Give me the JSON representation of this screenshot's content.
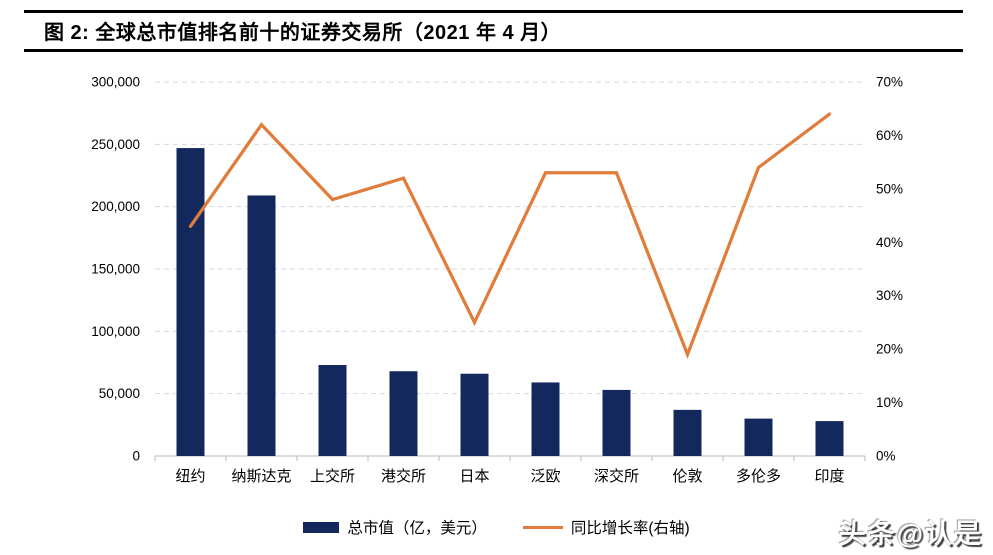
{
  "title": "图 2:  全球总市值排名前十的证券交易所（2021 年 4 月）",
  "watermark": "头条@认是",
  "legend": {
    "bar_label": "总市值（亿，美元）",
    "line_label": "同比增长率(右轴)"
  },
  "colors": {
    "bar": "#13295e",
    "line": "#e17d3c",
    "grid": "#d9d9d9",
    "axis": "#c6c6c6",
    "text": "#000000"
  },
  "chart_data": {
    "type": "bar",
    "subtype": "combo-bar-line-dual-axis",
    "title": "",
    "categories": [
      "纽约",
      "纳斯达克",
      "上交所",
      "港交所",
      "日本",
      "泛欧",
      "深交所",
      "伦敦",
      "多伦多",
      "印度"
    ],
    "series": [
      {
        "name": "总市值（亿，美元）",
        "type": "bar",
        "axis": "left",
        "color": "#13295e",
        "values": [
          247000,
          209000,
          73000,
          68000,
          66000,
          59000,
          53000,
          37000,
          30000,
          28000
        ]
      },
      {
        "name": "同比增长率(右轴)",
        "type": "line",
        "axis": "right",
        "color": "#e17d3c",
        "values": [
          43,
          62,
          48,
          52,
          25,
          53,
          53,
          19,
          54,
          64
        ]
      }
    ],
    "left_axis": {
      "min": 0,
      "max": 300000,
      "step": 50000,
      "tick_labels": [
        "0",
        "50,000",
        "100,000",
        "150,000",
        "200,000",
        "250,000",
        "300,000"
      ]
    },
    "right_axis": {
      "min": 0,
      "max": 70,
      "step": 10,
      "tick_labels": [
        "0%",
        "10%",
        "20%",
        "30%",
        "40%",
        "50%",
        "60%",
        "70%"
      ]
    },
    "grid": {
      "horizontal": true,
      "style": "dashed",
      "color": "#d9d9d9"
    },
    "legend_position": "bottom"
  }
}
